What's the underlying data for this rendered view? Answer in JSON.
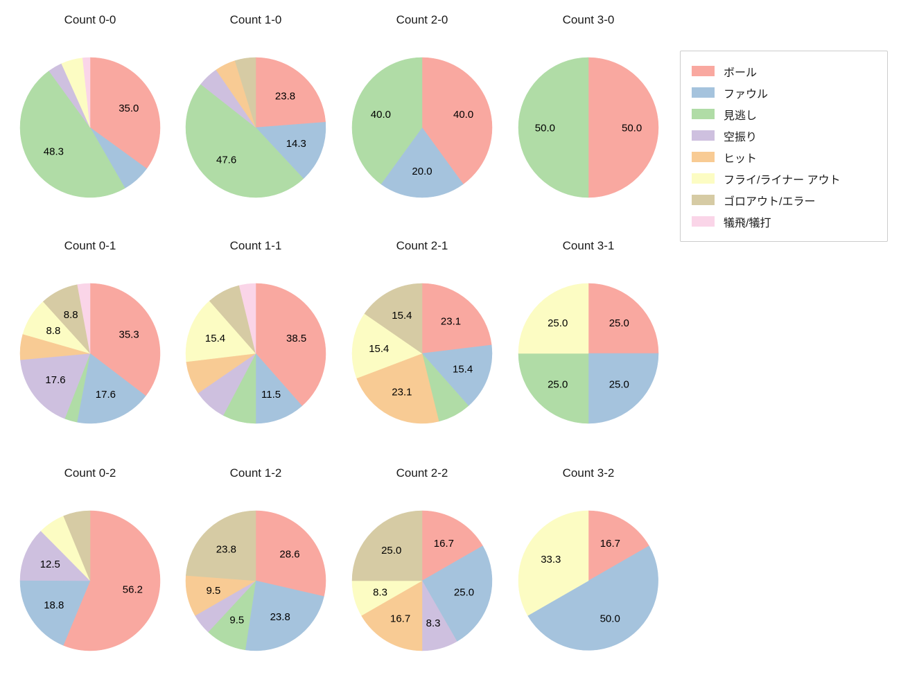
{
  "legend": {
    "entries": [
      {
        "label": "ボール",
        "color": "#F9A8A0"
      },
      {
        "label": "ファウル",
        "color": "#A5C3DD"
      },
      {
        "label": "見逃し",
        "color": "#B0DCA6"
      },
      {
        "label": "空振り",
        "color": "#CEC0DF"
      },
      {
        "label": "ヒット",
        "color": "#F8CB94"
      },
      {
        "label": "フライ/ライナー アウト",
        "color": "#FCFCC3"
      },
      {
        "label": "ゴロアウト/エラー",
        "color": "#D6CBA4"
      },
      {
        "label": "犠飛/犠打",
        "color": "#FAD5E8"
      }
    ]
  },
  "chart_data": {
    "type": "pie",
    "layout": "grid-4x3",
    "unit": "percent",
    "start_angle_deg": 90,
    "direction": "clockwise",
    "charts": [
      {
        "title": "Count 0-0",
        "slices": [
          {
            "category": "ボール",
            "value": 35.0,
            "labeled": true
          },
          {
            "category": "ファウル",
            "value": 6.7,
            "labeled": false
          },
          {
            "category": "見逃し",
            "value": 48.3,
            "labeled": true
          },
          {
            "category": "空振り",
            "value": 3.3,
            "labeled": false
          },
          {
            "category": "フライ/ライナー アウト",
            "value": 5.0,
            "labeled": false
          },
          {
            "category": "犠飛/犠打",
            "value": 1.7,
            "labeled": false
          }
        ]
      },
      {
        "title": "Count 1-0",
        "slices": [
          {
            "category": "ボール",
            "value": 23.8,
            "labeled": true
          },
          {
            "category": "ファウル",
            "value": 14.3,
            "labeled": true
          },
          {
            "category": "見逃し",
            "value": 47.6,
            "labeled": true
          },
          {
            "category": "空振り",
            "value": 4.8,
            "labeled": false
          },
          {
            "category": "ヒット",
            "value": 4.8,
            "labeled": false
          },
          {
            "category": "ゴロアウト/エラー",
            "value": 4.8,
            "labeled": false
          }
        ]
      },
      {
        "title": "Count 2-0",
        "slices": [
          {
            "category": "ボール",
            "value": 40.0,
            "labeled": true
          },
          {
            "category": "ファウル",
            "value": 20.0,
            "labeled": true
          },
          {
            "category": "見逃し",
            "value": 40.0,
            "labeled": true
          }
        ]
      },
      {
        "title": "Count 3-0",
        "slices": [
          {
            "category": "ボール",
            "value": 50.0,
            "labeled": true
          },
          {
            "category": "見逃し",
            "value": 50.0,
            "labeled": true
          }
        ]
      },
      {
        "title": "Count 0-1",
        "slices": [
          {
            "category": "ボール",
            "value": 35.3,
            "labeled": true
          },
          {
            "category": "ファウル",
            "value": 17.6,
            "labeled": true
          },
          {
            "category": "見逃し",
            "value": 2.9,
            "labeled": false
          },
          {
            "category": "空振り",
            "value": 17.6,
            "labeled": true
          },
          {
            "category": "ヒット",
            "value": 5.9,
            "labeled": false
          },
          {
            "category": "フライ/ライナー アウト",
            "value": 8.8,
            "labeled": true
          },
          {
            "category": "ゴロアウト/エラー",
            "value": 8.8,
            "labeled": true
          },
          {
            "category": "犠飛/犠打",
            "value": 2.9,
            "labeled": false
          }
        ]
      },
      {
        "title": "Count 1-1",
        "slices": [
          {
            "category": "ボール",
            "value": 38.5,
            "labeled": true
          },
          {
            "category": "ファウル",
            "value": 11.5,
            "labeled": true
          },
          {
            "category": "見逃し",
            "value": 7.7,
            "labeled": false
          },
          {
            "category": "空振り",
            "value": 7.7,
            "labeled": false
          },
          {
            "category": "ヒット",
            "value": 7.7,
            "labeled": false
          },
          {
            "category": "フライ/ライナー アウト",
            "value": 15.4,
            "labeled": true
          },
          {
            "category": "ゴロアウト/エラー",
            "value": 7.7,
            "labeled": false
          },
          {
            "category": "犠飛/犠打",
            "value": 3.8,
            "labeled": false
          }
        ]
      },
      {
        "title": "Count 2-1",
        "slices": [
          {
            "category": "ボール",
            "value": 23.1,
            "labeled": true
          },
          {
            "category": "ファウル",
            "value": 15.4,
            "labeled": true
          },
          {
            "category": "見逃し",
            "value": 7.7,
            "labeled": false
          },
          {
            "category": "ヒット",
            "value": 23.1,
            "labeled": true
          },
          {
            "category": "フライ/ライナー アウト",
            "value": 15.4,
            "labeled": true
          },
          {
            "category": "ゴロアウト/エラー",
            "value": 15.4,
            "labeled": true
          }
        ]
      },
      {
        "title": "Count 3-1",
        "slices": [
          {
            "category": "ボール",
            "value": 25.0,
            "labeled": true
          },
          {
            "category": "ファウル",
            "value": 25.0,
            "labeled": true
          },
          {
            "category": "見逃し",
            "value": 25.0,
            "labeled": true
          },
          {
            "category": "フライ/ライナー アウト",
            "value": 25.0,
            "labeled": true
          }
        ]
      },
      {
        "title": "Count 0-2",
        "slices": [
          {
            "category": "ボール",
            "value": 56.2,
            "labeled": true
          },
          {
            "category": "ファウル",
            "value": 18.8,
            "labeled": true
          },
          {
            "category": "空振り",
            "value": 12.5,
            "labeled": true
          },
          {
            "category": "フライ/ライナー アウト",
            "value": 6.2,
            "labeled": false
          },
          {
            "category": "ゴロアウト/エラー",
            "value": 6.2,
            "labeled": false
          }
        ]
      },
      {
        "title": "Count 1-2",
        "slices": [
          {
            "category": "ボール",
            "value": 28.6,
            "labeled": true
          },
          {
            "category": "ファウル",
            "value": 23.8,
            "labeled": true
          },
          {
            "category": "見逃し",
            "value": 9.5,
            "labeled": true
          },
          {
            "category": "空振り",
            "value": 4.8,
            "labeled": false
          },
          {
            "category": "ヒット",
            "value": 9.5,
            "labeled": true
          },
          {
            "category": "ゴロアウト/エラー",
            "value": 23.8,
            "labeled": true
          }
        ]
      },
      {
        "title": "Count 2-2",
        "slices": [
          {
            "category": "ボール",
            "value": 16.7,
            "labeled": true
          },
          {
            "category": "ファウル",
            "value": 25.0,
            "labeled": true
          },
          {
            "category": "空振り",
            "value": 8.3,
            "labeled": true
          },
          {
            "category": "ヒット",
            "value": 16.7,
            "labeled": true
          },
          {
            "category": "フライ/ライナー アウト",
            "value": 8.3,
            "labeled": true
          },
          {
            "category": "ゴロアウト/エラー",
            "value": 25.0,
            "labeled": true
          }
        ]
      },
      {
        "title": "Count 3-2",
        "slices": [
          {
            "category": "ボール",
            "value": 16.7,
            "labeled": true
          },
          {
            "category": "ファウル",
            "value": 50.0,
            "labeled": true
          },
          {
            "category": "フライ/ライナー アウト",
            "value": 33.3,
            "labeled": true
          }
        ]
      }
    ]
  }
}
